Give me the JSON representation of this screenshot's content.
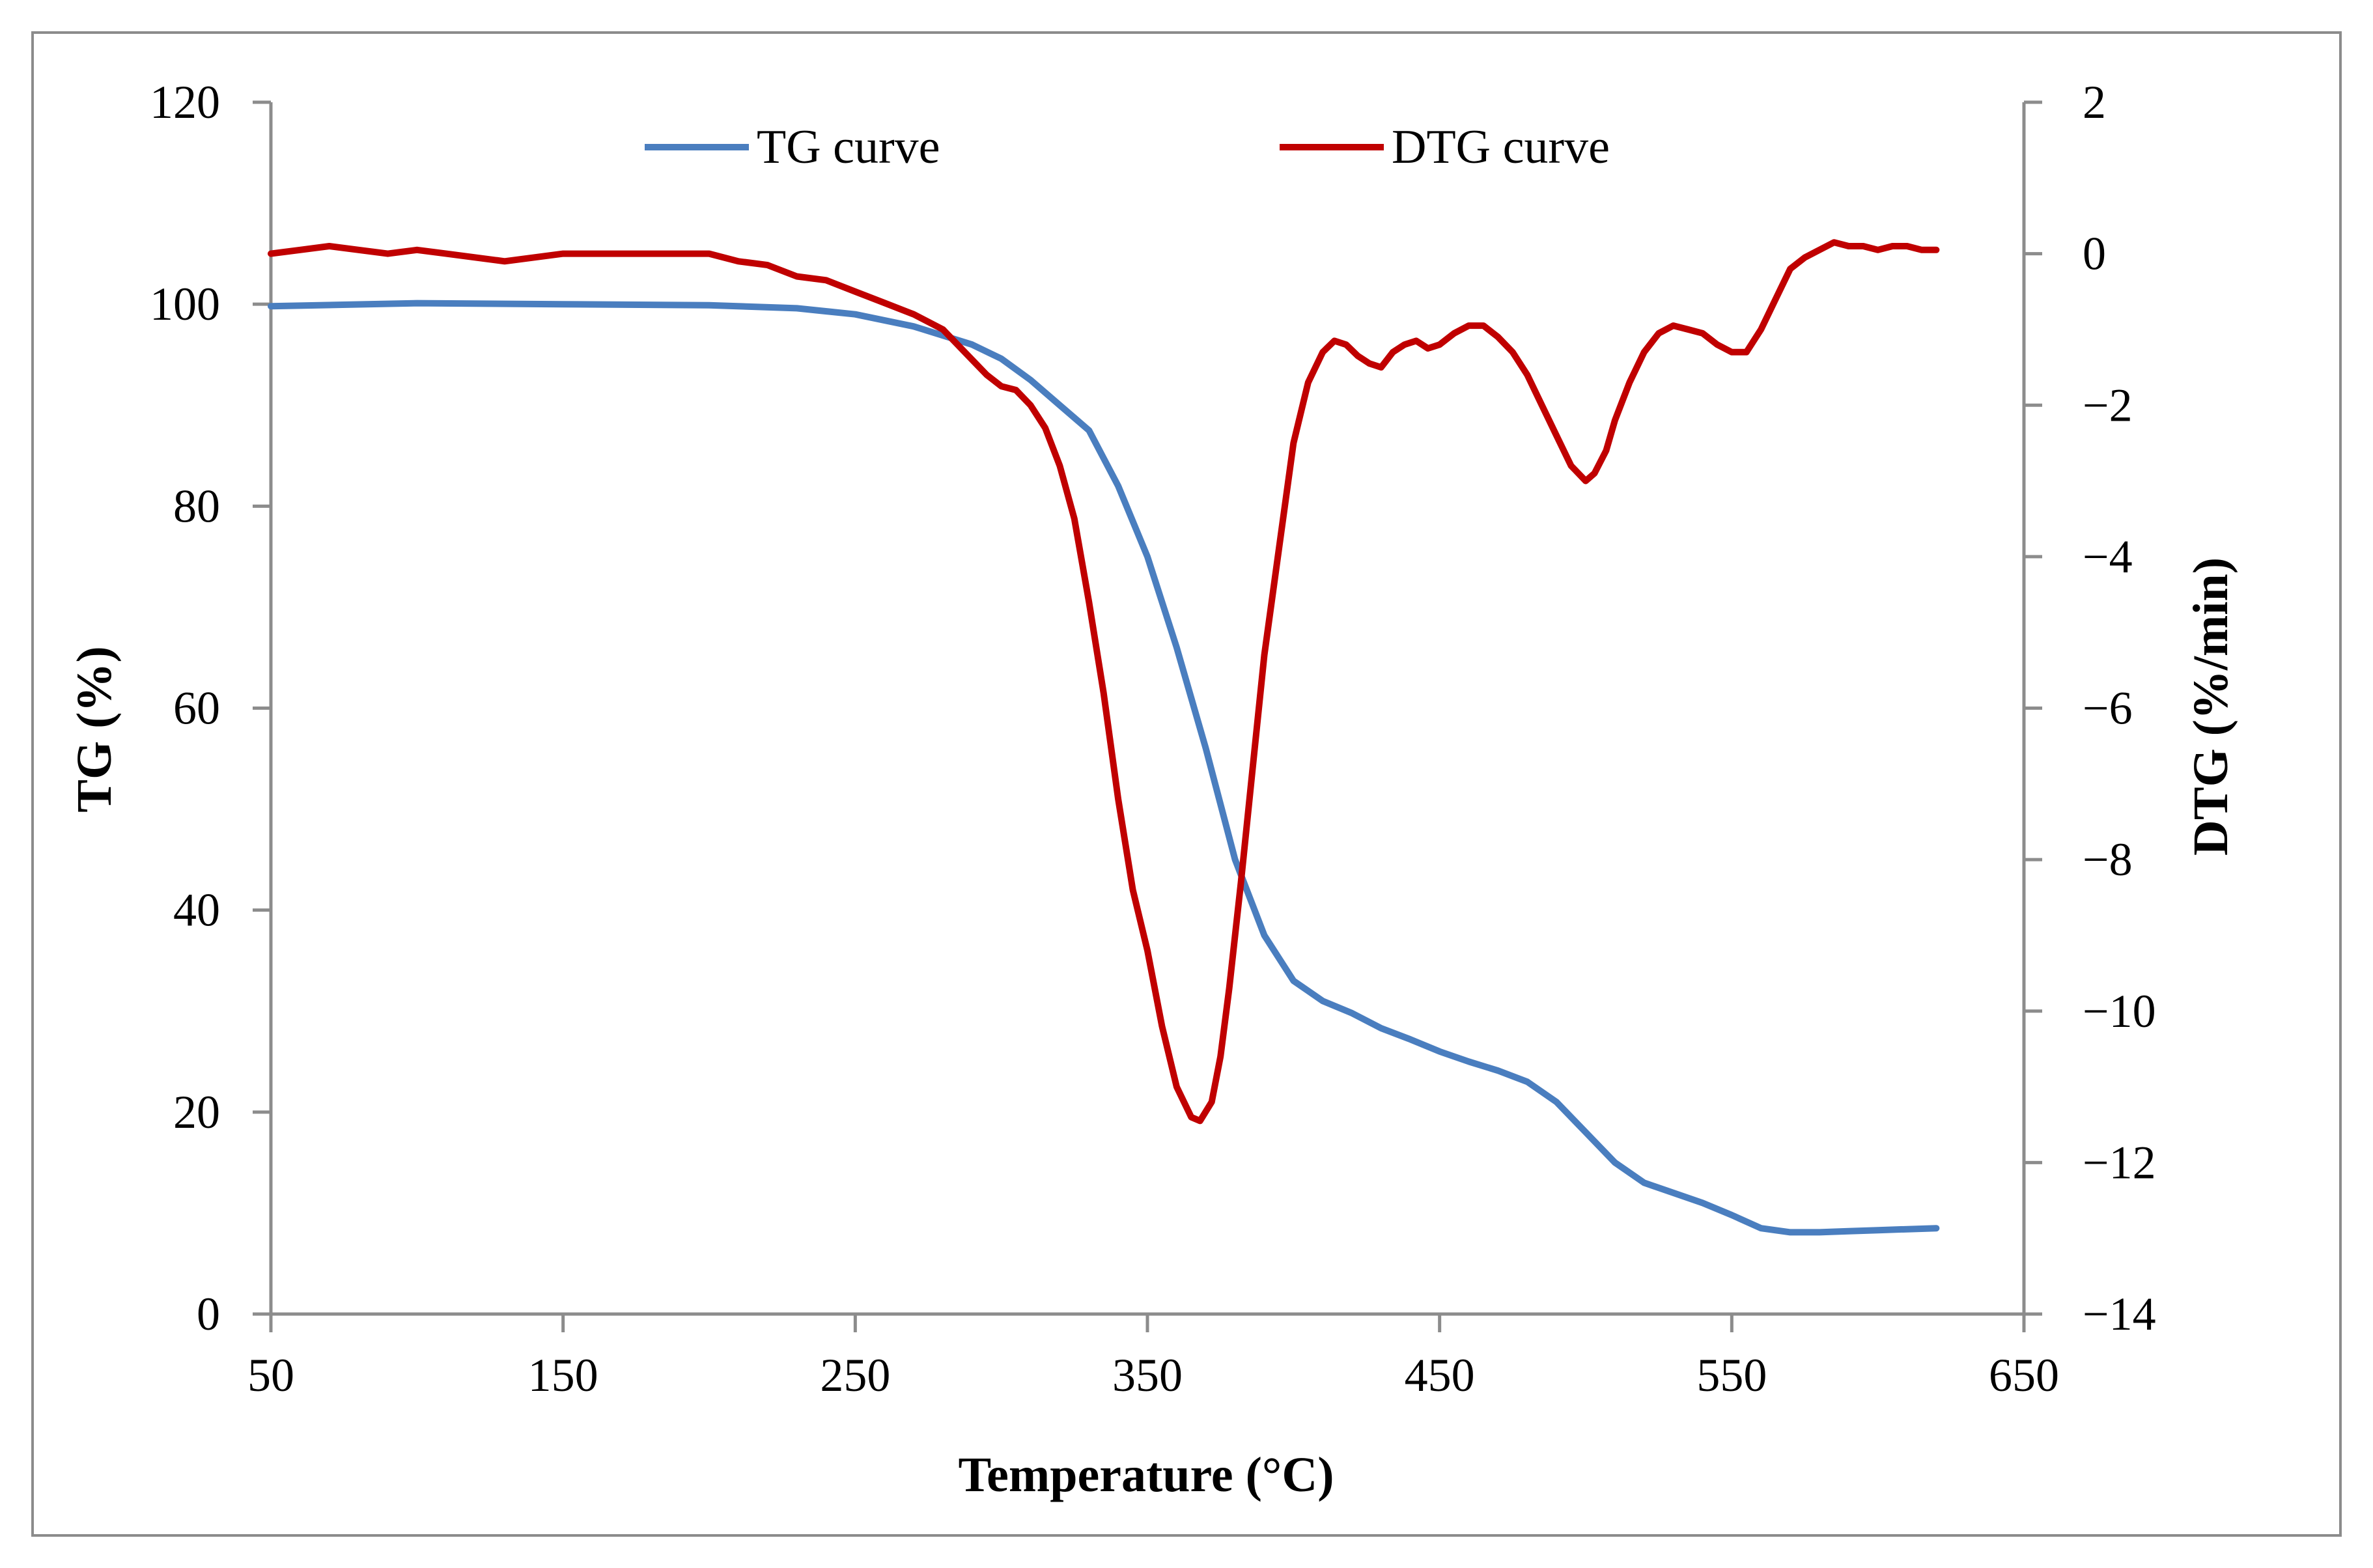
{
  "chart_data": {
    "type": "line",
    "title": "",
    "xlabel": "Temperature  (°C)",
    "ylabel_left": "TG (%)",
    "ylabel_right": "DTG (%/min)",
    "xlim": [
      50,
      650
    ],
    "ylim_left": [
      0,
      120
    ],
    "ylim_right": [
      -14,
      2
    ],
    "x_ticks": [
      "50",
      "150",
      "250",
      "350",
      "450",
      "550",
      "650"
    ],
    "y_left_ticks": [
      "0",
      "20",
      "40",
      "60",
      "80",
      "100",
      "120"
    ],
    "y_right_ticks": [
      "−14",
      "−12",
      "−10",
      "−8",
      "−6",
      "−4",
      "−2",
      "0",
      "2"
    ],
    "grid": false,
    "legend_position": "top-center",
    "colors": {
      "tg": "#4a7ebf",
      "dtg": "#c00000",
      "axis": "#8c8c8c"
    },
    "series": [
      {
        "name": "TG curve",
        "axis": "left",
        "color": "#4a7ebf",
        "x": [
          50,
          100,
          150,
          200,
          230,
          250,
          270,
          290,
          300,
          310,
          320,
          330,
          340,
          350,
          360,
          370,
          380,
          390,
          400,
          410,
          420,
          430,
          440,
          450,
          460,
          470,
          480,
          490,
          500,
          510,
          520,
          530,
          540,
          550,
          560,
          570,
          580,
          590,
          600,
          610,
          620
        ],
        "values": [
          99.8,
          100.1,
          100.0,
          99.9,
          99.6,
          99.0,
          97.8,
          96.0,
          94.6,
          92.5,
          90.0,
          87.5,
          82.0,
          75.0,
          66.0,
          56.0,
          45.0,
          37.5,
          33.0,
          31.0,
          29.8,
          28.3,
          27.2,
          26.0,
          25.0,
          24.1,
          23.0,
          21.0,
          18.0,
          15.0,
          13.0,
          12.0,
          11.0,
          9.8,
          8.5,
          8.1,
          8.1,
          8.2,
          8.3,
          8.4,
          8.5
        ]
      },
      {
        "name": "DTG curve",
        "axis": "right",
        "color": "#c00000",
        "x": [
          50,
          60,
          70,
          80,
          90,
          100,
          110,
          120,
          130,
          140,
          150,
          160,
          170,
          180,
          190,
          200,
          210,
          220,
          230,
          240,
          250,
          260,
          270,
          280,
          290,
          295,
          300,
          305,
          310,
          315,
          320,
          325,
          330,
          335,
          340,
          345,
          350,
          355,
          360,
          365,
          368,
          372,
          375,
          378,
          382,
          386,
          390,
          395,
          400,
          405,
          410,
          414,
          418,
          422,
          426,
          430,
          434,
          438,
          442,
          446,
          450,
          455,
          460,
          465,
          470,
          475,
          480,
          485,
          490,
          495,
          500,
          503,
          507,
          510,
          515,
          520,
          525,
          530,
          535,
          540,
          545,
          550,
          555,
          560,
          565,
          570,
          575,
          580,
          585,
          590,
          595,
          600,
          605,
          610,
          615,
          620
        ],
        "values": [
          0.0,
          0.05,
          0.1,
          0.05,
          0.0,
          0.05,
          0.0,
          -0.05,
          -0.1,
          -0.05,
          0.0,
          0.0,
          0.0,
          0.0,
          0.0,
          0.0,
          -0.1,
          -0.15,
          -0.3,
          -0.35,
          -0.5,
          -0.65,
          -0.8,
          -1.0,
          -1.4,
          -1.6,
          -1.75,
          -1.8,
          -2.0,
          -2.3,
          -2.8,
          -3.5,
          -4.6,
          -5.8,
          -7.2,
          -8.4,
          -9.2,
          -10.2,
          -11.0,
          -11.4,
          -11.45,
          -11.2,
          -10.6,
          -9.7,
          -8.3,
          -6.8,
          -5.3,
          -3.9,
          -2.5,
          -1.7,
          -1.3,
          -1.15,
          -1.2,
          -1.35,
          -1.45,
          -1.5,
          -1.3,
          -1.2,
          -1.15,
          -1.25,
          -1.2,
          -1.05,
          -0.95,
          -0.95,
          -1.1,
          -1.3,
          -1.6,
          -2.0,
          -2.4,
          -2.8,
          -3.0,
          -2.9,
          -2.6,
          -2.2,
          -1.7,
          -1.3,
          -1.05,
          -0.95,
          -1.0,
          -1.05,
          -1.2,
          -1.3,
          -1.3,
          -1.0,
          -0.6,
          -0.2,
          -0.05,
          0.05,
          0.15,
          0.1,
          0.1,
          0.05,
          0.1,
          0.1,
          0.05,
          0.05
        ]
      }
    ]
  }
}
